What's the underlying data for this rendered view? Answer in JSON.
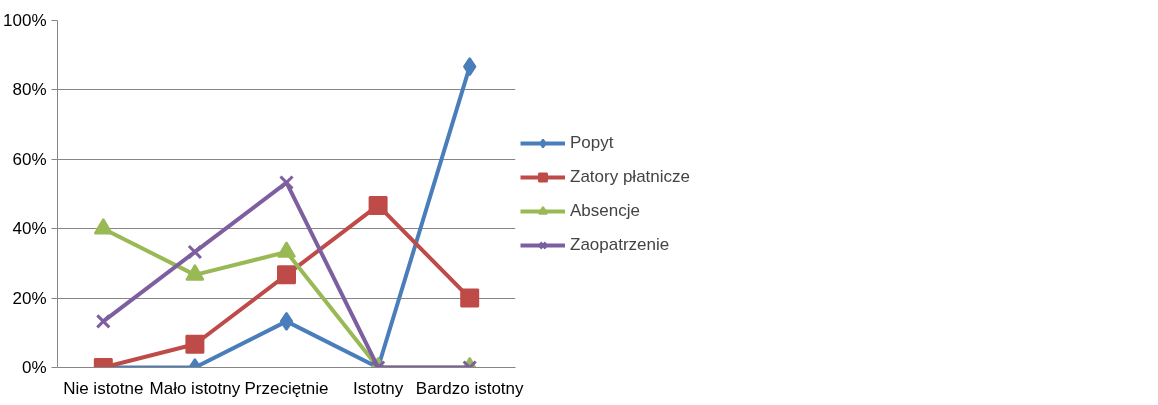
{
  "chart_data": {
    "type": "line",
    "categories": [
      "Nie istotne",
      "Mało istotny",
      "Przeciętnie",
      "Istotny",
      "Bardzo istotny"
    ],
    "series": [
      {
        "name": "Popyt",
        "color": "#4a7ebb",
        "marker": "diamond",
        "values": [
          0,
          0,
          13.3,
          0,
          86.7
        ]
      },
      {
        "name": "Zatory płatnicze",
        "color": "#be4b48",
        "marker": "square",
        "values": [
          0,
          6.7,
          26.7,
          46.7,
          20
        ]
      },
      {
        "name": "Absencje",
        "color": "#98b954",
        "marker": "triangle",
        "values": [
          40,
          26.7,
          33.3,
          0,
          0
        ]
      },
      {
        "name": "Zaopatrzenie",
        "color": "#7d5fa0",
        "marker": "x",
        "values": [
          13.3,
          33.3,
          53.3,
          0,
          0
        ]
      }
    ],
    "ylim": [
      0,
      100
    ],
    "yticks": [
      {
        "value": 0,
        "label": "0%"
      },
      {
        "value": 20,
        "label": "20%"
      },
      {
        "value": 40,
        "label": "40%"
      },
      {
        "value": 60,
        "label": "60%"
      },
      {
        "value": 80,
        "label": "80%"
      },
      {
        "value": 100,
        "label": "100%"
      }
    ],
    "grid": "y",
    "legend": "right",
    "line_style": "solid"
  }
}
